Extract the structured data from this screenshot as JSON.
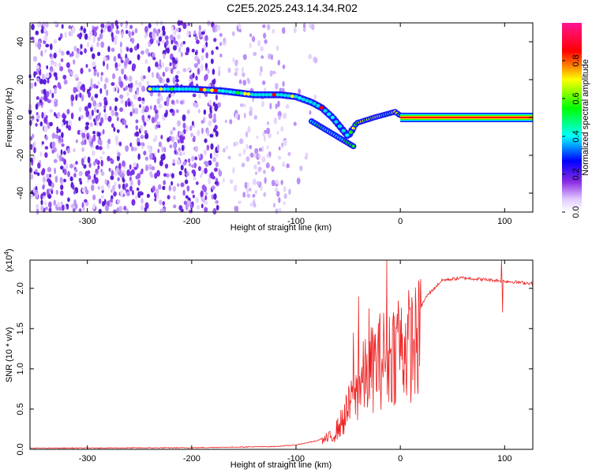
{
  "title": "C2E5.2025.243.14.34.R02",
  "chart_data": [
    {
      "type": "heatmap",
      "panel": "top",
      "xlabel": "Height of straight line (km)",
      "ylabel": "Frequency (Hz)",
      "xlim": [
        -355,
        127
      ],
      "ylim": [
        -50,
        50
      ],
      "xticks": [
        -300,
        -200,
        -100,
        0,
        100
      ],
      "yticks": [
        -40,
        -20,
        0,
        20,
        40
      ],
      "colorbar": {
        "label": "Normalized spectral amplitude",
        "ticks": [
          0.0,
          0.2,
          0.4,
          0.6,
          0.8
        ],
        "colors": [
          "#ffffff",
          "#8a2be2",
          "#0000ff",
          "#00ffff",
          "#00ff00",
          "#ffff00",
          "#ff0000",
          "#ff1493"
        ]
      },
      "signal_ridge": [
        {
          "x": -240,
          "y": 15
        },
        {
          "x": -200,
          "y": 15
        },
        {
          "x": -170,
          "y": 14
        },
        {
          "x": -140,
          "y": 12
        },
        {
          "x": -115,
          "y": 12
        },
        {
          "x": -100,
          "y": 11
        },
        {
          "x": -85,
          "y": 8
        },
        {
          "x": -75,
          "y": 5
        },
        {
          "x": -65,
          "y": 0
        },
        {
          "x": -50,
          "y": -10
        },
        {
          "x": -42,
          "y": -3
        },
        {
          "x": -25,
          "y": 0
        },
        {
          "x": -5,
          "y": 3
        },
        {
          "x": 0,
          "y": 1
        },
        {
          "x": 127,
          "y": 0
        }
      ],
      "noise_region_x": [
        -355,
        -100
      ]
    },
    {
      "type": "line",
      "panel": "bottom",
      "xlabel": "Height of straight line (km)",
      "ylabel": "SNR (10 * v/v)",
      "yscale_label": "(x10",
      "yscale_exponent": "4",
      "xlim": [
        -355,
        127
      ],
      "ylim": [
        0,
        2.35
      ],
      "xticks": [
        -300,
        -200,
        -100,
        0,
        100
      ],
      "yticks": [
        0.0,
        0.5,
        1.0,
        1.5,
        2.0
      ],
      "color": "#ee2222",
      "envelope": [
        {
          "x": -355,
          "y": 0.01
        },
        {
          "x": -200,
          "y": 0.015
        },
        {
          "x": -120,
          "y": 0.03
        },
        {
          "x": -100,
          "y": 0.05
        },
        {
          "x": -80,
          "y": 0.1
        },
        {
          "x": -65,
          "y": 0.2
        },
        {
          "x": -55,
          "y": 0.45
        },
        {
          "x": -45,
          "y": 0.8
        },
        {
          "x": -35,
          "y": 1.1
        },
        {
          "x": -25,
          "y": 1.3
        },
        {
          "x": -15,
          "y": 1.45
        },
        {
          "x": -5,
          "y": 1.55
        },
        {
          "x": 5,
          "y": 1.6
        },
        {
          "x": 15,
          "y": 1.65
        },
        {
          "x": 25,
          "y": 1.9
        },
        {
          "x": 40,
          "y": 2.1
        },
        {
          "x": 60,
          "y": 2.13
        },
        {
          "x": 90,
          "y": 2.1
        },
        {
          "x": 127,
          "y": 2.06
        }
      ],
      "spikes": [
        {
          "x": -45,
          "y": 1.45
        },
        {
          "x": -40,
          "y": 1.9
        },
        {
          "x": -30,
          "y": 1.75
        },
        {
          "x": -13,
          "y": 2.35
        },
        {
          "x": -2,
          "y": 1.85
        },
        {
          "x": 97,
          "y": 2.35
        },
        {
          "x": 98,
          "y": 1.7
        }
      ]
    }
  ]
}
